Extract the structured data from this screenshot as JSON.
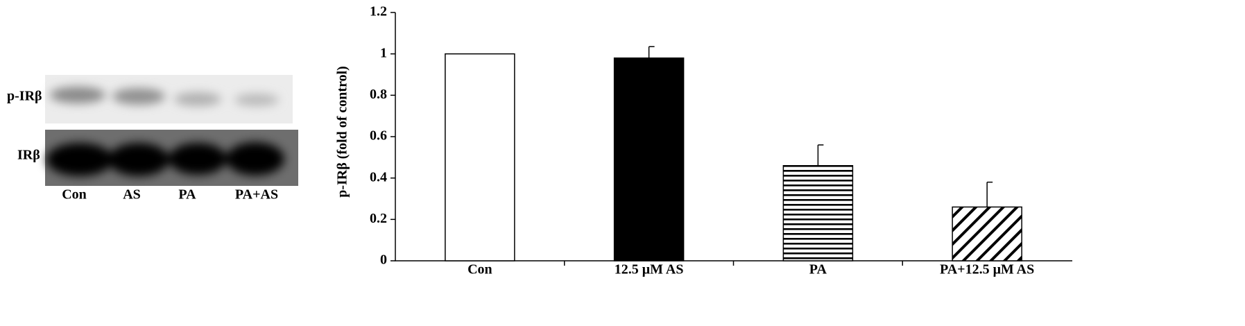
{
  "blot": {
    "rows": [
      "p-IRβ",
      "IRβ"
    ],
    "lanes": [
      "Con",
      "AS",
      "PA",
      "PA+AS"
    ]
  },
  "chart_data": {
    "type": "bar",
    "y_label": "p-IRβ (fold of control)",
    "categories": [
      "Con",
      "12.5 μM AS",
      "PA",
      "PA+12.5 μM AS"
    ],
    "values": [
      1.0,
      0.98,
      0.46,
      0.26
    ],
    "errors": [
      null,
      0.055,
      0.1,
      0.12
    ],
    "fills": [
      "white",
      "solid",
      "horizontal",
      "diagonal"
    ],
    "color": "#000000",
    "ylim": [
      0,
      1.2
    ],
    "yticks": [
      0,
      0.2,
      0.4,
      0.6,
      0.8,
      1,
      1.2
    ],
    "grid": false
  }
}
